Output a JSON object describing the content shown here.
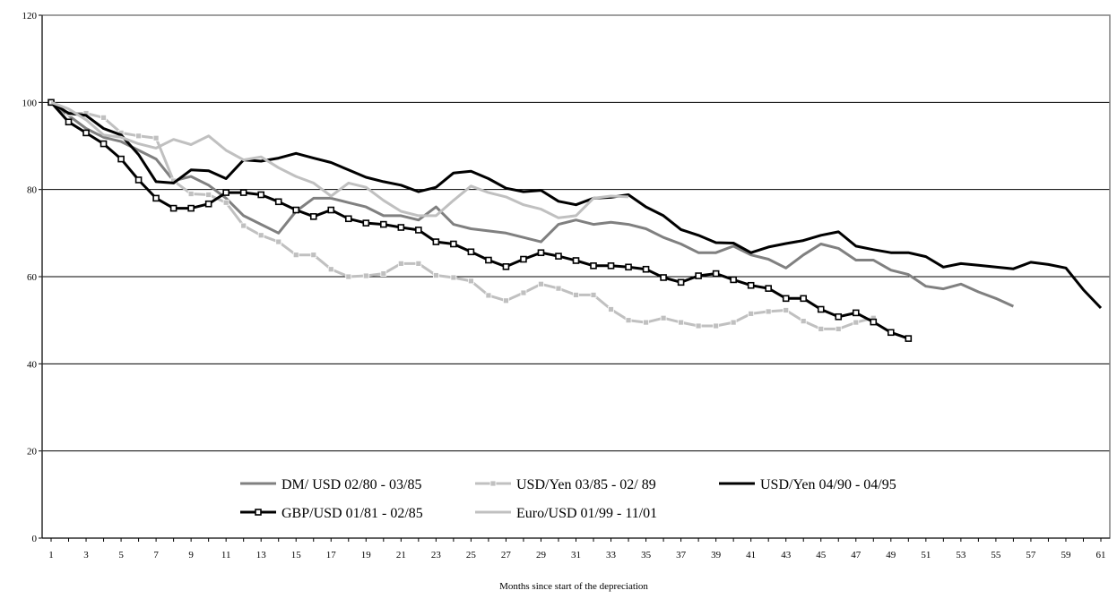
{
  "chart_data": {
    "type": "line",
    "title": "",
    "xlabel": "Months since start of the depreciation",
    "ylabel": "",
    "ylim": [
      0,
      120
    ],
    "yticks": [
      0,
      20,
      40,
      60,
      80,
      100,
      120
    ],
    "xticks": [
      1,
      3,
      5,
      7,
      9,
      11,
      13,
      15,
      17,
      19,
      21,
      23,
      25,
      27,
      29,
      31,
      33,
      35,
      37,
      39,
      41,
      43,
      45,
      47,
      49,
      51,
      53,
      55,
      57,
      59,
      61
    ],
    "xlim": [
      1,
      61
    ],
    "grid": "horizontal",
    "legend_position": "bottom-center",
    "series": [
      {
        "name": "DM/ USD  02/80 - 03/85",
        "color": "#808080",
        "marker": "none",
        "values": [
          100,
          97,
          94,
          92,
          91,
          89,
          87,
          82,
          83,
          81,
          78,
          74,
          72,
          70,
          75,
          78,
          78,
          77,
          76,
          74,
          74,
          73,
          76,
          72,
          71,
          70.5,
          70,
          69,
          68,
          72,
          73,
          72,
          72.5,
          72,
          71,
          69,
          67.5,
          65.5,
          65.5,
          67,
          65,
          64,
          62,
          65,
          67.5,
          66.5,
          63.8,
          63.8,
          61.5,
          60.5,
          57.8,
          57.2,
          58.3,
          56.5,
          55,
          53.2
        ]
      },
      {
        "name": "USD/Yen 03/85 - 02/ 89",
        "color": "#c0c0c0",
        "marker": "square",
        "values": [
          100,
          97.5,
          97.5,
          96.5,
          93,
          92.3,
          91.8,
          82,
          79,
          78.8,
          77,
          71.7,
          69.5,
          68,
          65,
          65,
          61.7,
          60,
          60.2,
          60.7,
          63,
          63,
          60.3,
          59.8,
          59,
          55.7,
          54.5,
          56.3,
          58.3,
          57.3,
          55.8,
          55.8,
          52.5,
          50,
          49.5,
          50.5,
          49.5,
          48.7,
          48.7,
          49.5,
          51.5,
          52,
          52.3,
          49.8,
          48,
          48,
          49.5,
          50.5
        ]
      },
      {
        "name": "USD/Yen 04/90 - 04/95",
        "color": "#000000",
        "marker": "none",
        "values": [
          100,
          97.5,
          97,
          94,
          92.5,
          88,
          81.8,
          81.5,
          84.5,
          84.3,
          82.5,
          86.8,
          86.5,
          87.2,
          88.3,
          87.2,
          86.2,
          84.5,
          82.8,
          81.8,
          81,
          79.5,
          80.5,
          83.8,
          84.2,
          82.5,
          80.3,
          79.5,
          79.8,
          77.3,
          76.5,
          78,
          78.2,
          78.8,
          76,
          74,
          70.8,
          69.5,
          67.8,
          67.7,
          65.5,
          66.8,
          67.6,
          68.3,
          69.5,
          70.3,
          67,
          66.2,
          65.5,
          65.5,
          64.6,
          62.2,
          63,
          62.6,
          62.2,
          61.8,
          63.3,
          62.8,
          62,
          57,
          52.8
        ]
      },
      {
        "name": "GBP/USD 01/81 - 02/85",
        "color": "#000000",
        "marker": "square-hollow",
        "values": [
          100,
          95.5,
          93,
          90.5,
          87,
          82.2,
          78,
          75.7,
          75.7,
          76.7,
          79.3,
          79.3,
          78.8,
          77.2,
          75.3,
          73.8,
          75.3,
          73.3,
          72.3,
          72,
          71.3,
          70.7,
          68,
          67.5,
          65.7,
          63.8,
          62.3,
          64,
          65.5,
          64.7,
          63.7,
          62.5,
          62.5,
          62.2,
          61.7,
          59.8,
          58.7,
          60.2,
          60.7,
          59.3,
          58,
          57.3,
          55,
          55,
          52.5,
          50.8,
          51.7,
          49.6,
          47.2,
          45.8
        ]
      },
      {
        "name": "Euro/USD 01/99 - 11/01",
        "color": "#c0c0c0",
        "marker": "none",
        "values": [
          100,
          98.5,
          96,
          92.5,
          92,
          90.5,
          89.5,
          91.5,
          90.3,
          92.3,
          89,
          86.8,
          87.5,
          85,
          83,
          81.5,
          78.5,
          81.5,
          80.5,
          77.5,
          75,
          74,
          74,
          77.5,
          80.8,
          79.3,
          78.3,
          76.5,
          75.5,
          73.5,
          74,
          78,
          78.5,
          78.3
        ]
      }
    ]
  }
}
